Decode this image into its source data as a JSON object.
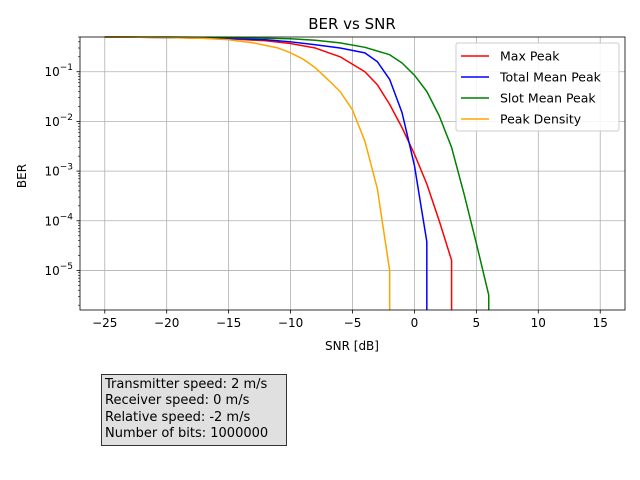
{
  "chart_data": {
    "type": "line",
    "title": "BER vs SNR",
    "xlabel": "SNR [dB]",
    "ylabel": "BER",
    "xlim": [
      -27,
      17
    ],
    "ylim": [
      1.6e-06,
      0.5
    ],
    "yscale": "log",
    "grid": true,
    "xticks": [
      -25,
      -20,
      -15,
      -10,
      -5,
      0,
      5,
      10,
      15
    ],
    "xtick_labels": [
      "−25",
      "−20",
      "−15",
      "−10",
      "−5",
      "0",
      "5",
      "10",
      "15"
    ],
    "yticks": [
      1e-05,
      0.0001,
      0.001,
      0.01,
      0.1
    ],
    "ytick_labels": [
      {
        "base": "10",
        "exp": "−5"
      },
      {
        "base": "10",
        "exp": "−4"
      },
      {
        "base": "10",
        "exp": "−3"
      },
      {
        "base": "10",
        "exp": "−2"
      },
      {
        "base": "10",
        "exp": "−1"
      }
    ],
    "legend_position": "top-right",
    "series": [
      {
        "name": "Max Peak",
        "color": "#ff0000",
        "x": [
          -25,
          -20,
          -15,
          -12,
          -10,
          -8,
          -6,
          -4,
          -3,
          -2,
          -1,
          0,
          1,
          2,
          3,
          3
        ],
        "y": [
          0.5,
          0.49,
          0.46,
          0.42,
          0.37,
          0.3,
          0.2,
          0.1,
          0.055,
          0.022,
          0.0075,
          0.0022,
          0.00055,
          0.0001,
          1.6e-05,
          1.6e-06
        ]
      },
      {
        "name": "Total Mean Peak",
        "color": "#0000ff",
        "x": [
          -25,
          -20,
          -15,
          -12,
          -10,
          -8,
          -6,
          -4,
          -3,
          -2,
          -1,
          0,
          0.5,
          1,
          1
        ],
        "y": [
          0.5,
          0.49,
          0.47,
          0.44,
          0.4,
          0.35,
          0.3,
          0.24,
          0.16,
          0.07,
          0.015,
          0.0013,
          0.00022,
          3.8e-05,
          1.6e-06
        ]
      },
      {
        "name": "Slot Mean Peak",
        "color": "#008000",
        "x": [
          -25,
          -20,
          -15,
          -10,
          -8,
          -6,
          -4,
          -2,
          -1,
          0,
          1,
          2,
          3,
          4,
          5,
          6,
          6
        ],
        "y": [
          0.5,
          0.5,
          0.49,
          0.46,
          0.43,
          0.38,
          0.31,
          0.22,
          0.15,
          0.085,
          0.04,
          0.013,
          0.003,
          0.00035,
          3.5e-05,
          3.2e-06,
          1.6e-06
        ]
      },
      {
        "name": "Peak Density",
        "color": "#ffa500",
        "x": [
          -25,
          -20,
          -17,
          -15,
          -13,
          -11,
          -10,
          -9,
          -8,
          -7,
          -6,
          -5,
          -4,
          -3,
          -2,
          -2
        ],
        "y": [
          0.5,
          0.49,
          0.47,
          0.44,
          0.38,
          0.3,
          0.24,
          0.18,
          0.12,
          0.07,
          0.04,
          0.017,
          0.004,
          0.00045,
          1e-05,
          1.6e-06
        ]
      }
    ]
  },
  "info_box": {
    "lines": [
      "Transmitter speed: 2 m/s",
      "Receiver speed: 0 m/s",
      "Relative speed: -2 m/s",
      "Number of bits: 1000000"
    ]
  }
}
